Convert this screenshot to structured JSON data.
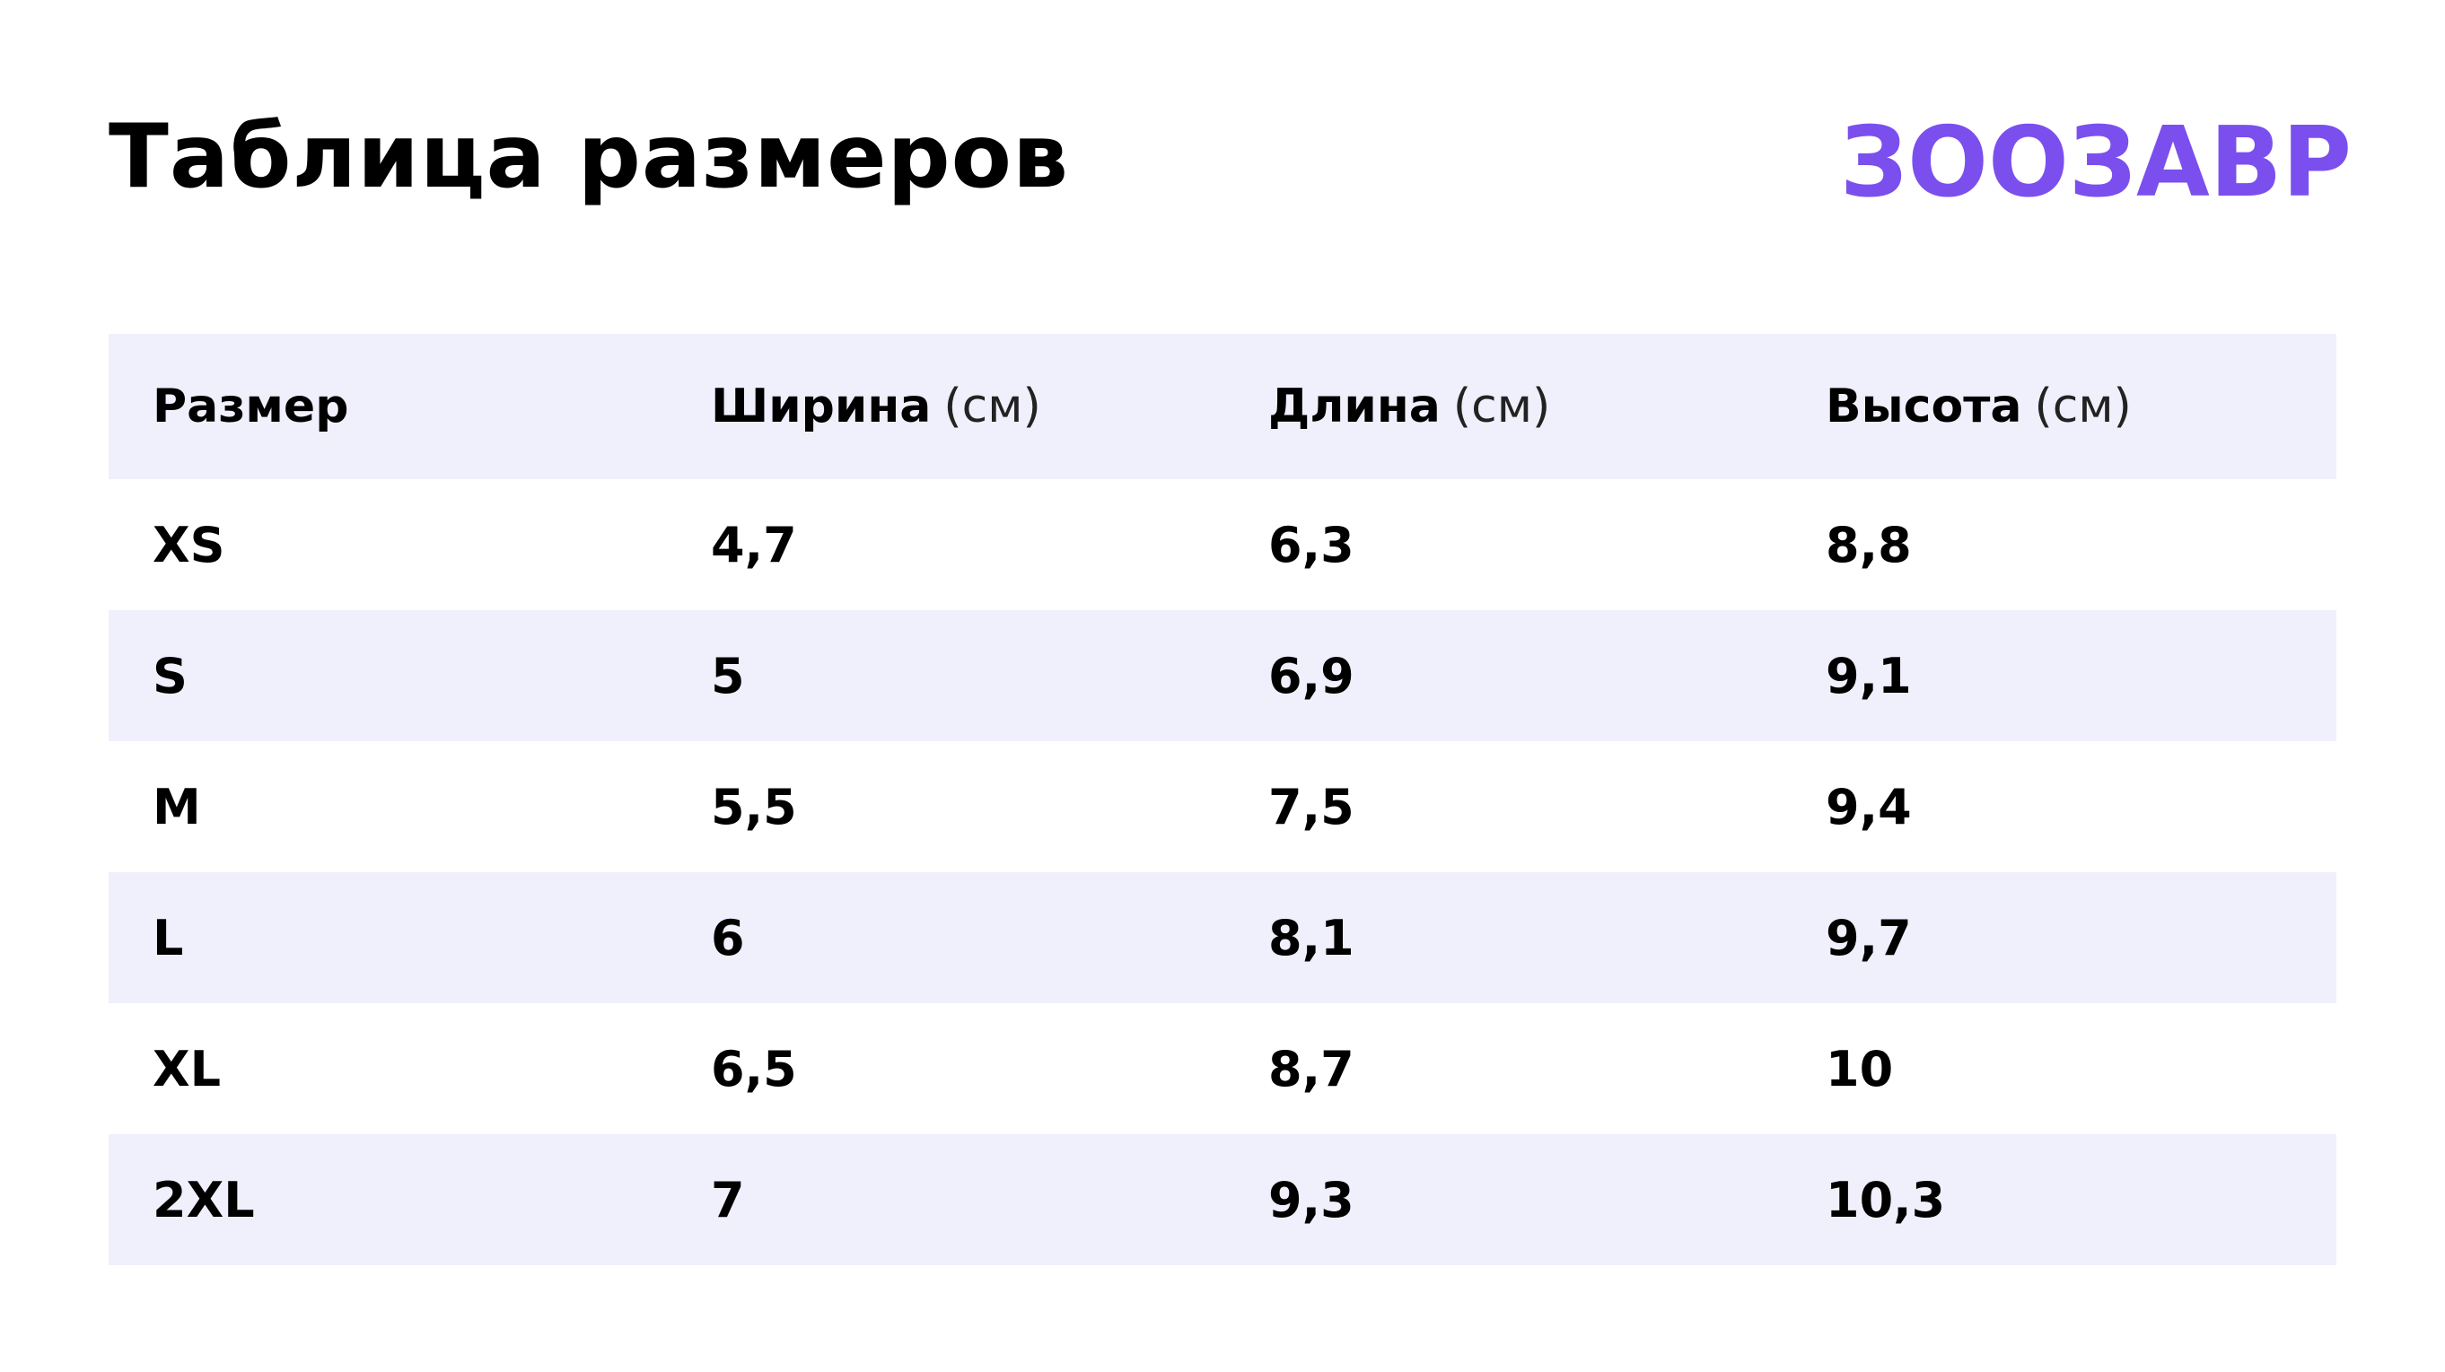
{
  "header": {
    "title": "Таблица размеров",
    "logo": "ЗООЗАВР"
  },
  "table": {
    "columns": [
      {
        "label": "Размер"
      },
      {
        "label": "Ширина",
        "unit": "(см)"
      },
      {
        "label": "Длина",
        "unit": "(см)"
      },
      {
        "label": "Высота",
        "unit": "(см)"
      }
    ],
    "rows": [
      [
        "XS",
        "4,7",
        "6,3",
        "8,8"
      ],
      [
        "S",
        "5",
        "6,9",
        "9,1"
      ],
      [
        "M",
        "5,5",
        "7,5",
        "9,4"
      ],
      [
        "L",
        "6",
        "8,1",
        "9,7"
      ],
      [
        "XL",
        "6,5",
        "8,7",
        "10"
      ],
      [
        "2XL",
        "7",
        "9,3",
        "10,3"
      ]
    ]
  }
}
